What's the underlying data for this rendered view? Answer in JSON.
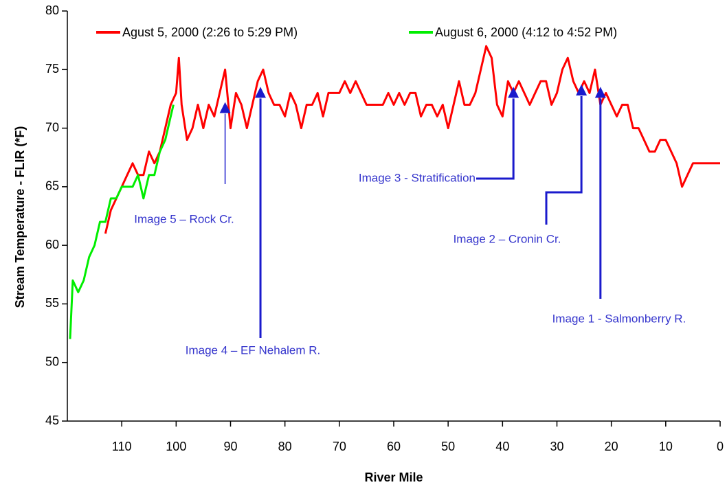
{
  "chart_data": {
    "type": "line",
    "xlabel": "River Mile",
    "ylabel": "Stream Temperature - FLIR (*F)",
    "xlim": [
      120,
      0
    ],
    "ylim": [
      45,
      80
    ],
    "xticks": [
      110,
      100,
      90,
      80,
      70,
      60,
      50,
      40,
      30,
      20,
      10,
      0
    ],
    "yticks": [
      45,
      50,
      55,
      60,
      65,
      70,
      75,
      80
    ],
    "legend": "top",
    "series": [
      {
        "name": "Agust 5, 2000 (2:26 to 5:29 PM)",
        "color": "#ff0000",
        "x": [
          113,
          112,
          111,
          110,
          109,
          108,
          107,
          106,
          105,
          104,
          103,
          102,
          101,
          100,
          99.5,
          99,
          98,
          97,
          96,
          95,
          94,
          93,
          92,
          91,
          90,
          89,
          88,
          87,
          86,
          85,
          84,
          83,
          82,
          81,
          80,
          79,
          78,
          77,
          76,
          75,
          74,
          73,
          72,
          71,
          70,
          69,
          68,
          67,
          66,
          65,
          64,
          63,
          62,
          61,
          60,
          59,
          58,
          57,
          56,
          55,
          54,
          53,
          52,
          51,
          50,
          49,
          48,
          47,
          46,
          45,
          44,
          43,
          42,
          41,
          40,
          39,
          38,
          37,
          36,
          35,
          34,
          33,
          32,
          31,
          30,
          29,
          28,
          27,
          26,
          25,
          24,
          23,
          22,
          21,
          20,
          19,
          18,
          17,
          16,
          15,
          14,
          13,
          12,
          11,
          10,
          9,
          8,
          7,
          6,
          5,
          4,
          3,
          2,
          1,
          0
        ],
        "values": [
          61,
          63,
          64,
          65,
          66,
          67,
          66,
          66,
          68,
          67,
          68,
          70,
          72,
          73,
          76,
          72,
          69,
          70,
          72,
          70,
          72,
          71,
          73,
          75,
          70,
          73,
          72,
          70,
          72,
          74,
          75,
          73,
          72,
          72,
          71,
          73,
          72,
          70,
          72,
          72,
          73,
          71,
          73,
          73,
          73,
          74,
          73,
          74,
          73,
          72,
          72,
          72,
          72,
          73,
          72,
          73,
          72,
          73,
          73,
          71,
          72,
          72,
          71,
          72,
          70,
          72,
          74,
          72,
          72,
          73,
          75,
          77,
          76,
          72,
          71,
          74,
          73,
          74,
          73,
          72,
          73,
          74,
          74,
          72,
          73,
          75,
          76,
          74,
          73,
          74,
          73,
          75,
          72,
          73,
          72,
          71,
          72,
          72,
          70,
          70,
          69,
          68,
          68,
          69,
          69,
          68,
          67,
          65,
          66,
          67,
          67,
          67,
          67,
          67,
          67
        ]
      },
      {
        "name": "August 6, 2000 (4:12 to 4:52 PM)",
        "color": "#00ee00",
        "x": [
          119.5,
          119,
          118,
          117,
          116,
          115,
          114,
          113,
          112,
          111,
          110,
          109,
          108,
          107,
          106,
          105,
          104,
          103,
          102,
          101,
          100.5
        ],
        "values": [
          52,
          57,
          56,
          57,
          59,
          60,
          62,
          62,
          64,
          64,
          65,
          65,
          65,
          66,
          64,
          66,
          66,
          68,
          69,
          71,
          72
        ]
      }
    ],
    "annotations": [
      {
        "text": "Image 1 - Salmonberry R.",
        "x": 22,
        "y": 73
      },
      {
        "text": "Image 2 –  Cronin Cr.",
        "x": 25.5,
        "y": 73.2
      },
      {
        "text": "Image 3 - Stratification",
        "x": 38,
        "y": 73
      },
      {
        "text": "Image 4 – EF Nehalem R.",
        "x": 84.5,
        "y": 73
      },
      {
        "text": "Image 5 – Rock Cr.",
        "x": 91,
        "y": 71.7
      }
    ]
  }
}
